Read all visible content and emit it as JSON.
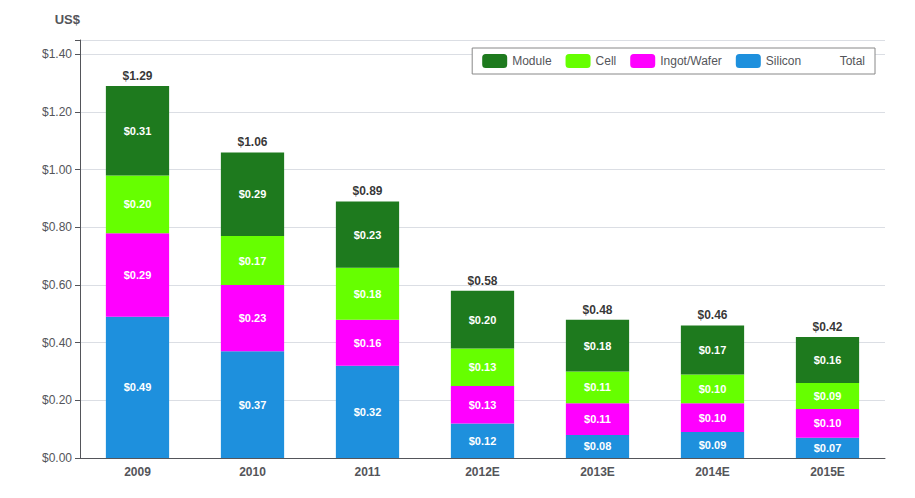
{
  "chart_data": {
    "type": "bar",
    "stacked": true,
    "y_label": "US$",
    "categories": [
      "2009",
      "2010",
      "2011",
      "2012E",
      "2013E",
      "2014E",
      "2015E"
    ],
    "series": [
      {
        "name": "Silicon",
        "color": "#1e90dd",
        "values": [
          0.49,
          0.37,
          0.32,
          0.12,
          0.08,
          0.09,
          0.07
        ],
        "value_labels": [
          "$0.49",
          "$0.37",
          "$0.32",
          "$0.12",
          "$0.08",
          "$0.09",
          "$0.07"
        ]
      },
      {
        "name": "Ingot/Wafer",
        "color": "#ff00ff",
        "values": [
          0.29,
          0.23,
          0.16,
          0.13,
          0.11,
          0.1,
          0.1
        ],
        "value_labels": [
          "$0.29",
          "$0.23",
          "$0.16",
          "$0.13",
          "$0.11",
          "$0.10",
          "$0.10"
        ]
      },
      {
        "name": "Cell",
        "color": "#66ff00",
        "values": [
          0.2,
          0.17,
          0.18,
          0.13,
          0.11,
          0.1,
          0.09
        ],
        "value_labels": [
          "$0.20",
          "$0.17",
          "$0.18",
          "$0.13",
          "$0.11",
          "$0.10",
          "$0.09"
        ]
      },
      {
        "name": "Module",
        "color": "#1e7a1e",
        "values": [
          0.31,
          0.29,
          0.23,
          0.2,
          0.18,
          0.17,
          0.16
        ],
        "value_labels": [
          "$0.31",
          "$0.29",
          "$0.23",
          "$0.20",
          "$0.18",
          "$0.17",
          "$0.16"
        ]
      },
      {
        "name": "Total",
        "type": "scatter",
        "marker": "none",
        "values": [
          1.29,
          1.06,
          0.89,
          0.58,
          0.48,
          0.46,
          0.42
        ],
        "value_labels": [
          "$1.29",
          "$1.06",
          "$0.89",
          "$0.58",
          "$0.48",
          "$0.46",
          "$0.42"
        ]
      }
    ],
    "ylim": [
      0,
      1.45
    ],
    "yticks": [
      {
        "value": 0.0,
        "label": "$0.00"
      },
      {
        "value": 0.2,
        "label": "$0.20"
      },
      {
        "value": 0.4,
        "label": "$0.40"
      },
      {
        "value": 0.6,
        "label": "$0.60"
      },
      {
        "value": 0.8,
        "label": "$0.80"
      },
      {
        "value": 1.0,
        "label": "$1.00"
      },
      {
        "value": 1.2,
        "label": "$1.20"
      },
      {
        "value": 1.4,
        "label": "$1.40"
      }
    ],
    "grid": true,
    "legend": "upper right",
    "data_labels": true
  }
}
